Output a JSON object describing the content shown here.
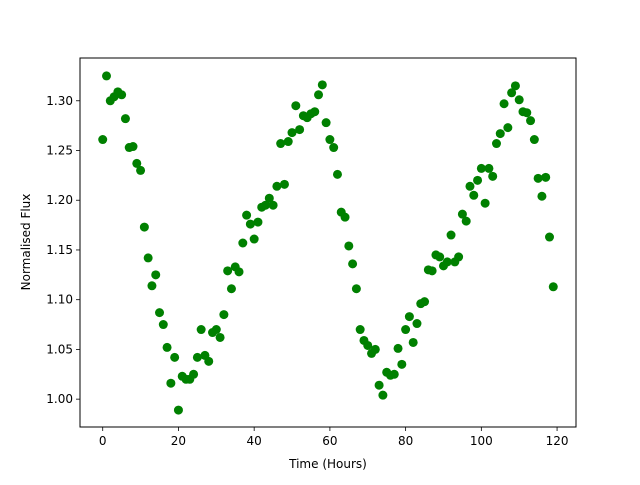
{
  "chart_data": {
    "type": "scatter",
    "title": "",
    "xlabel": "Time (Hours)",
    "ylabel": "Normalised Flux",
    "xlim": [
      -6,
      125
    ],
    "ylim": [
      0.972,
      1.343
    ],
    "xticks": [
      0,
      20,
      40,
      60,
      80,
      100,
      120
    ],
    "yticks": [
      1.0,
      1.05,
      1.1,
      1.15,
      1.2,
      1.25,
      1.3
    ],
    "xtick_labels": [
      "0",
      "20",
      "40",
      "60",
      "80",
      "100",
      "120"
    ],
    "ytick_labels": [
      "1.00",
      "1.05",
      "1.10",
      "1.15",
      "1.20",
      "1.25",
      "1.30"
    ],
    "grid": false,
    "marker_color": "#008000",
    "series": [
      {
        "x": [
          0,
          1,
          2,
          3,
          4,
          5,
          6,
          7,
          8,
          9,
          10,
          11,
          12,
          13,
          14,
          15,
          16,
          17,
          18,
          19,
          20,
          21,
          22,
          23,
          24,
          25,
          26,
          27,
          28,
          29,
          30,
          31,
          32,
          33,
          34,
          35,
          36,
          37,
          38,
          39,
          40,
          41,
          42,
          43,
          44,
          45,
          46,
          47,
          48,
          49,
          50,
          51,
          52,
          53,
          54,
          55,
          56,
          57,
          58,
          59,
          60,
          61,
          62,
          63,
          64,
          65,
          66,
          67,
          68,
          69,
          70,
          71,
          72,
          73,
          74,
          75,
          76,
          77,
          78,
          79,
          80,
          81,
          82,
          83,
          84,
          85,
          86,
          87,
          88,
          89,
          90,
          91,
          92,
          93,
          94,
          95,
          96,
          97,
          98,
          99,
          100,
          101,
          102,
          103,
          104,
          105,
          106,
          107,
          108,
          109,
          110,
          111,
          112,
          113,
          114,
          115,
          116,
          117,
          118,
          119
        ],
        "y": [
          1.261,
          1.325,
          1.3,
          1.304,
          1.309,
          1.306,
          1.282,
          1.253,
          1.254,
          1.237,
          1.23,
          1.173,
          1.142,
          1.114,
          1.125,
          1.087,
          1.075,
          1.052,
          1.016,
          1.042,
          0.989,
          1.023,
          1.02,
          1.02,
          1.025,
          1.042,
          1.07,
          1.044,
          1.038,
          1.067,
          1.07,
          1.062,
          1.085,
          1.129,
          1.111,
          1.133,
          1.128,
          1.157,
          1.185,
          1.176,
          1.161,
          1.178,
          1.193,
          1.195,
          1.202,
          1.195,
          1.214,
          1.257,
          1.216,
          1.259,
          1.268,
          1.295,
          1.271,
          1.285,
          1.283,
          1.287,
          1.289,
          1.306,
          1.316,
          1.278,
          1.261,
          1.253,
          1.226,
          1.188,
          1.183,
          1.154,
          1.136,
          1.111,
          1.07,
          1.059,
          1.054,
          1.046,
          1.05,
          1.014,
          1.004,
          1.027,
          1.024,
          1.025,
          1.051,
          1.035,
          1.07,
          1.083,
          1.057,
          1.076,
          1.096,
          1.098,
          1.13,
          1.129,
          1.145,
          1.143,
          1.134,
          1.138,
          1.165,
          1.138,
          1.143,
          1.186,
          1.179,
          1.214,
          1.205,
          1.22,
          1.232,
          1.197,
          1.232,
          1.224,
          1.257,
          1.267,
          1.297,
          1.273,
          1.308,
          1.315,
          1.301,
          1.289,
          1.288,
          1.28,
          1.261,
          1.222,
          1.204,
          1.223,
          1.163,
          1.113
        ]
      }
    ]
  }
}
